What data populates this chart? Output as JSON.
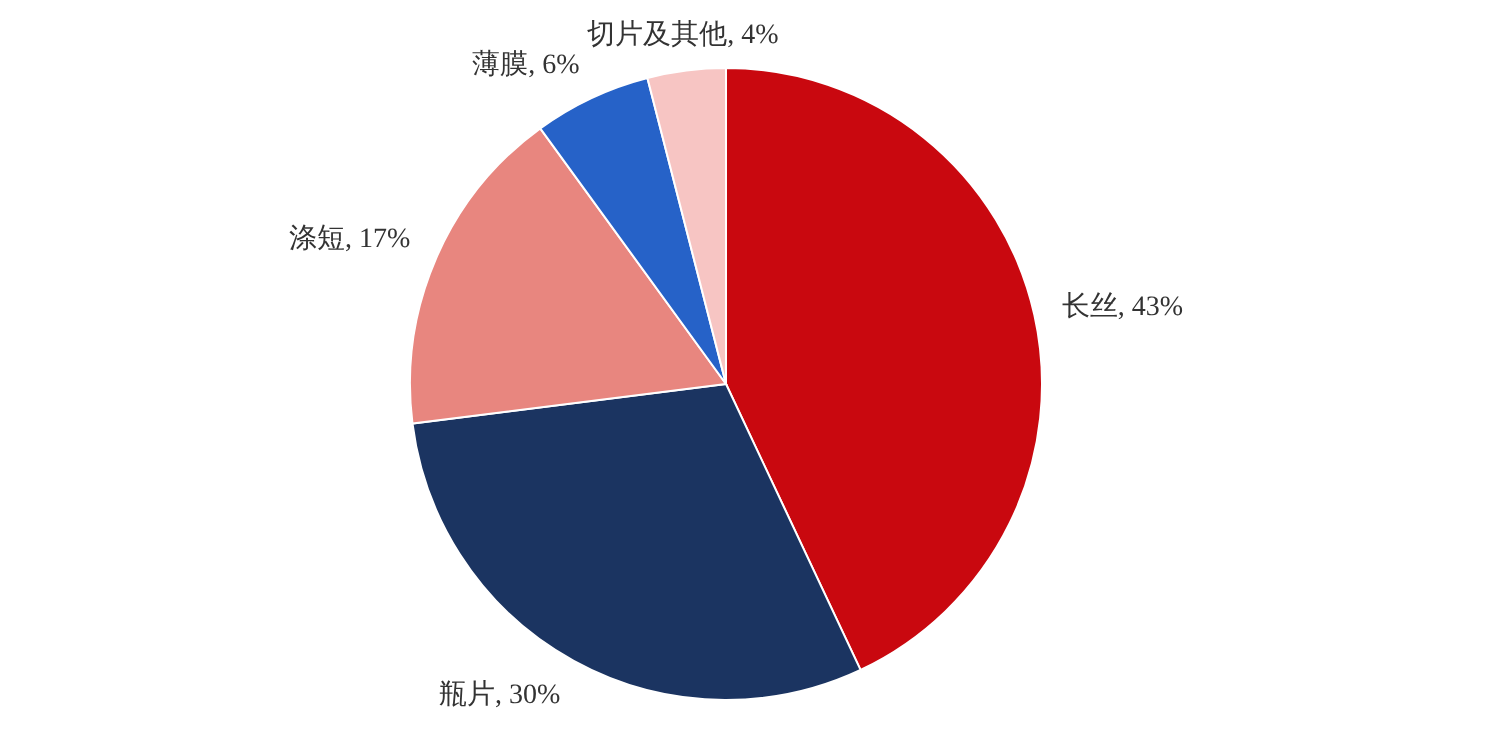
{
  "chart_data": {
    "type": "pie",
    "categories": [
      "长丝",
      "瓶片",
      "涤短",
      "薄膜",
      "切片及其他"
    ],
    "values": [
      43,
      30,
      17,
      6,
      4
    ],
    "value_labels": [
      "43%",
      "30%",
      "17%",
      "6%",
      "4%"
    ],
    "colors": [
      "#c9080f",
      "#1b3461",
      "#e8867f",
      "#2662c8",
      "#f7c5c3"
    ]
  }
}
